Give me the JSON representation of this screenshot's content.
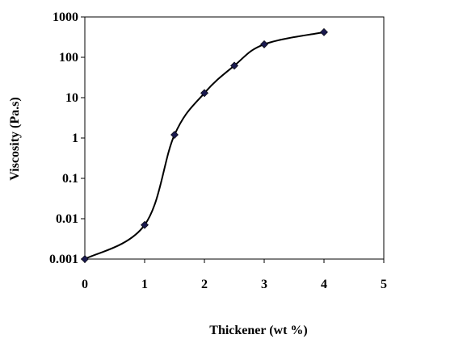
{
  "chart_data": {
    "type": "line",
    "title": "",
    "xlabel": "Thickener (wt %)",
    "ylabel": "Viscosity (Pa.s)",
    "xlim": [
      0,
      5
    ],
    "ylim": [
      0.001,
      1000
    ],
    "yscale": "log",
    "grid": false,
    "legend": "none",
    "x_ticks": [
      "0",
      "1",
      "2",
      "3",
      "4",
      "5"
    ],
    "y_ticks": [
      "0.001",
      "0.01",
      "0.1",
      "1",
      "10",
      "100",
      "1000"
    ],
    "series": [
      {
        "x": [
          0,
          1,
          1.5,
          2,
          2.5,
          3,
          4
        ],
        "y": [
          0.001,
          0.007,
          1.2,
          13,
          62,
          210,
          420
        ],
        "smooth": true,
        "marker": "diamond",
        "line_color": "#000000",
        "marker_color": "#1a1a4e"
      }
    ]
  }
}
